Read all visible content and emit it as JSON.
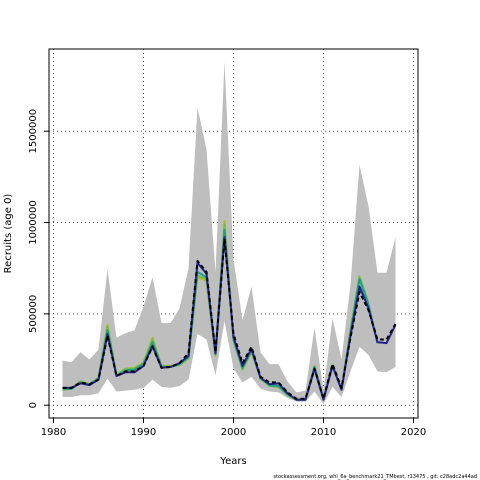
{
  "chart_data": {
    "type": "line",
    "title": "",
    "xlabel": "Years",
    "ylabel": "Recruits (age 0)",
    "xlim": [
      1979.5,
      2020.5
    ],
    "ylim": [
      -70000,
      1950000
    ],
    "xticks": [
      1980,
      1990,
      2000,
      2010,
      2020
    ],
    "xtick_labels": [
      "1980",
      "1990",
      "2000",
      "2010",
      "2020"
    ],
    "yticks": [
      0,
      500000,
      1000000,
      1500000
    ],
    "ytick_labels": [
      "0",
      "500000",
      "1000000",
      "1500000"
    ],
    "grid": true,
    "legend": "none",
    "footnote": "stockassessment.org, whl_6a_benchmark21_TMbest, r13475 ,  git: c28adc2a44ad",
    "colors": {
      "band": "#bebebe",
      "grid": "#555555",
      "series": [
        "#000000",
        "#23238e",
        "#1f9e89",
        "#6cc04a",
        "#b5b827"
      ]
    },
    "years": [
      1981,
      1982,
      1983,
      1984,
      1985,
      1986,
      1987,
      1988,
      1989,
      1990,
      1991,
      1992,
      1993,
      1994,
      1995,
      1996,
      1997,
      1998,
      1999,
      2000,
      2001,
      2002,
      2003,
      2004,
      2005,
      2006,
      2007,
      2008,
      2009,
      2010,
      2011,
      2012,
      2013,
      2014,
      2015,
      2016,
      2017,
      2018
    ],
    "band": {
      "lower": [
        45000,
        45000,
        55000,
        55000,
        65000,
        145000,
        75000,
        80000,
        85000,
        95000,
        140000,
        100000,
        95000,
        105000,
        140000,
        390000,
        360000,
        165000,
        460000,
        200000,
        125000,
        155000,
        90000,
        75000,
        70000,
        40000,
        20000,
        20000,
        75000,
        5000,
        100000,
        45000,
        185000,
        320000,
        275000,
        185000,
        180000,
        210000
      ],
      "upper": [
        245000,
        235000,
        290000,
        250000,
        305000,
        745000,
        370000,
        395000,
        410000,
        540000,
        700000,
        450000,
        450000,
        530000,
        750000,
        1630000,
        1400000,
        730000,
        1880000,
        800000,
        465000,
        650000,
        290000,
        225000,
        225000,
        130000,
        70000,
        80000,
        425000,
        80000,
        475000,
        250000,
        660000,
        1315000,
        1090000,
        725000,
        725000,
        920000
      ]
    },
    "series": [
      {
        "values": [
          95000,
          95000,
          125000,
          115000,
          140000,
          380000,
          160000,
          185000,
          185000,
          215000,
          320000,
          205000,
          210000,
          230000,
          285000,
          790000,
          730000,
          290000,
          910000,
          390000,
          230000,
          320000,
          155000,
          125000,
          125000,
          70000,
          35000,
          35000,
          200000,
          35000,
          225000,
          95000,
          370000,
          620000,
          520000,
          360000,
          360000,
          445000
        ]
      },
      {
        "values": [
          95000,
          95000,
          120000,
          110000,
          140000,
          390000,
          160000,
          180000,
          180000,
          215000,
          325000,
          205000,
          210000,
          230000,
          270000,
          780000,
          720000,
          285000,
          920000,
          375000,
          215000,
          310000,
          150000,
          115000,
          120000,
          65000,
          30000,
          30000,
          200000,
          30000,
          215000,
          85000,
          380000,
          650000,
          530000,
          345000,
          340000,
          440000
        ]
      },
      {
        "values": [
          90000,
          90000,
          125000,
          115000,
          145000,
          410000,
          160000,
          190000,
          195000,
          225000,
          345000,
          210000,
          210000,
          225000,
          265000,
          730000,
          700000,
          280000,
          960000,
          360000,
          205000,
          300000,
          150000,
          110000,
          105000,
          60000,
          30000,
          30000,
          210000,
          35000,
          215000,
          85000,
          400000,
          690000,
          550000,
          340000,
          null,
          null
        ]
      },
      {
        "values": [
          85000,
          90000,
          130000,
          115000,
          150000,
          430000,
          165000,
          200000,
          200000,
          230000,
          360000,
          215000,
          210000,
          220000,
          255000,
          710000,
          690000,
          275000,
          990000,
          355000,
          195000,
          295000,
          145000,
          105000,
          100000,
          55000,
          30000,
          30000,
          210000,
          35000,
          220000,
          85000,
          410000,
          705000,
          560000,
          null,
          null,
          null
        ]
      },
      {
        "values": [
          85000,
          95000,
          130000,
          115000,
          150000,
          440000,
          165000,
          200000,
          205000,
          235000,
          370000,
          215000,
          215000,
          220000,
          255000,
          700000,
          680000,
          270000,
          1010000,
          355000,
          195000,
          290000,
          145000,
          105000,
          100000,
          55000,
          30000,
          30000,
          215000,
          35000,
          220000,
          85000,
          415000,
          710000,
          null,
          null,
          null,
          null
        ]
      }
    ]
  }
}
